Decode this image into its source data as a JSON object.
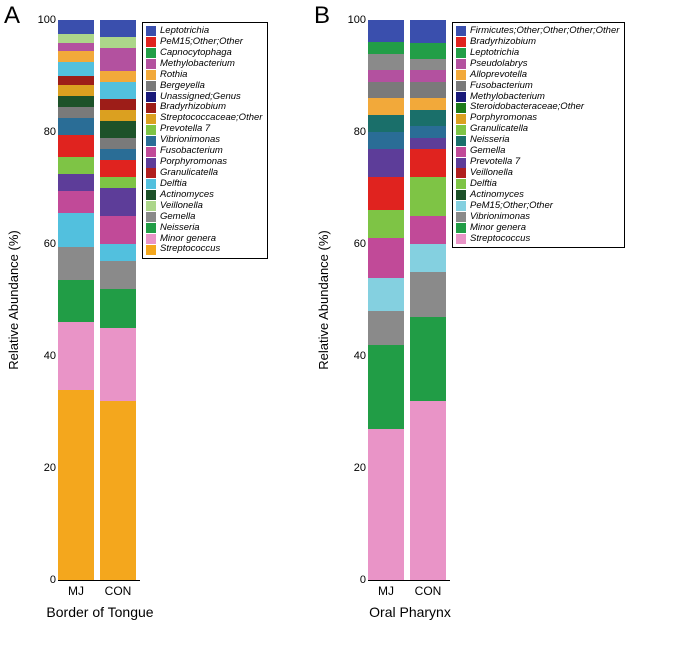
{
  "panelA": {
    "label": "A",
    "title": "Border of Tongue",
    "ylabel": "Relative Abundance (%)",
    "ylim": [
      0,
      100
    ],
    "ytick_step": 20,
    "categories": [
      "MJ",
      "CON"
    ],
    "axis_line_width": 82,
    "legend": [
      {
        "label": "Leptotrichia",
        "color": "#3a4fad"
      },
      {
        "label": "PeM15;Other;Other",
        "color": "#e0231f"
      },
      {
        "label": "Capnocytophaga",
        "color": "#229e47"
      },
      {
        "label": "Methylobacterium",
        "color": "#b3519f"
      },
      {
        "label": "Rothia",
        "color": "#f2a93a"
      },
      {
        "label": "Bergeyella",
        "color": "#7a7a7a"
      },
      {
        "label": "Unassigned;Genus",
        "color": "#1a1a7a"
      },
      {
        "label": "Bradyrhizobium",
        "color": "#9d1d18"
      },
      {
        "label": "Streptococcaceae;Other",
        "color": "#dba020"
      },
      {
        "label": "Prevotella 7",
        "color": "#7ec445"
      },
      {
        "label": "Vibrionimonas",
        "color": "#2a6d96"
      },
      {
        "label": "Fusobacterium",
        "color": "#c14a98"
      },
      {
        "label": "Porphyromonas",
        "color": "#5d3d99"
      },
      {
        "label": "Granulicatella",
        "color": "#b01f1e"
      },
      {
        "label": "Delftia",
        "color": "#52c0de"
      },
      {
        "label": "Actinomyces",
        "color": "#1d5229"
      },
      {
        "label": "Veillonella",
        "color": "#acd68a"
      },
      {
        "label": "Gemella",
        "color": "#8a8a8a"
      },
      {
        "label": "Neisseria",
        "color": "#219d46"
      },
      {
        "label": "Minor genera",
        "color": "#e994c7"
      },
      {
        "label": "Streptococcus",
        "color": "#f4a71d"
      }
    ],
    "bars": {
      "MJ": [
        {
          "color": "#f4a71d",
          "value": 34
        },
        {
          "color": "#e994c7",
          "value": 12
        },
        {
          "color": "#219d46",
          "value": 7.5
        },
        {
          "color": "#8a8a8a",
          "value": 6
        },
        {
          "color": "#52c0de",
          "value": 6
        },
        {
          "color": "#c14a98",
          "value": 4
        },
        {
          "color": "#5d3d99",
          "value": 3
        },
        {
          "color": "#7ec445",
          "value": 3
        },
        {
          "color": "#e0231f",
          "value": 4
        },
        {
          "color": "#2a6d96",
          "value": 3
        },
        {
          "color": "#7a7a7a",
          "value": 2
        },
        {
          "color": "#1d5229",
          "value": 2
        },
        {
          "color": "#dba020",
          "value": 2
        },
        {
          "color": "#9d1d18",
          "value": 1.5
        },
        {
          "color": "#52c0de",
          "value": 2.5
        },
        {
          "color": "#f2a93a",
          "value": 2
        },
        {
          "color": "#b3519f",
          "value": 1.5
        },
        {
          "color": "#acd68a",
          "value": 1.5
        },
        {
          "color": "#3a4fad",
          "value": 2.5
        }
      ],
      "CON": [
        {
          "color": "#f4a71d",
          "value": 32
        },
        {
          "color": "#e994c7",
          "value": 13
        },
        {
          "color": "#219d46",
          "value": 7
        },
        {
          "color": "#8a8a8a",
          "value": 5
        },
        {
          "color": "#52c0de",
          "value": 3
        },
        {
          "color": "#c14a98",
          "value": 5
        },
        {
          "color": "#5d3d99",
          "value": 5
        },
        {
          "color": "#7ec445",
          "value": 2
        },
        {
          "color": "#e0231f",
          "value": 3
        },
        {
          "color": "#2a6d96",
          "value": 2
        },
        {
          "color": "#7a7a7a",
          "value": 2
        },
        {
          "color": "#1d5229",
          "value": 3
        },
        {
          "color": "#dba020",
          "value": 2
        },
        {
          "color": "#9d1d18",
          "value": 2
        },
        {
          "color": "#52c0de",
          "value": 3
        },
        {
          "color": "#f2a93a",
          "value": 2
        },
        {
          "color": "#b3519f",
          "value": 4
        },
        {
          "color": "#acd68a",
          "value": 2
        },
        {
          "color": "#3a4fad",
          "value": 3
        }
      ]
    }
  },
  "panelB": {
    "label": "B",
    "title": "Oral Pharynx",
    "ylabel": "Relative Abundance (%)",
    "ylim": [
      0,
      100
    ],
    "ytick_step": 20,
    "categories": [
      "MJ",
      "CON"
    ],
    "axis_line_width": 82,
    "legend": [
      {
        "label": "Firmicutes;Other;Other;Other;Other",
        "color": "#3a4fad"
      },
      {
        "label": "Bradyrhizobium",
        "color": "#e0231f"
      },
      {
        "label": "Leptotrichia",
        "color": "#229e47"
      },
      {
        "label": "Pseudolabrys",
        "color": "#b3519f"
      },
      {
        "label": "Alloprevotella",
        "color": "#f2a93a"
      },
      {
        "label": "Fusobacterium",
        "color": "#7a7a7a"
      },
      {
        "label": "Methylobacterium",
        "color": "#1a1a7a"
      },
      {
        "label": "Steroidobacteraceae;Other",
        "color": "#1d7a1a"
      },
      {
        "label": "Porphyromonas",
        "color": "#dba020"
      },
      {
        "label": "Granulicatella",
        "color": "#7ec445"
      },
      {
        "label": "Neisseria",
        "color": "#1a6f6a"
      },
      {
        "label": "Gemella",
        "color": "#c14a98"
      },
      {
        "label": "Prevotella 7",
        "color": "#5d3d99"
      },
      {
        "label": "Veillonella",
        "color": "#b01f1e"
      },
      {
        "label": "Delftia",
        "color": "#7ec445"
      },
      {
        "label": "Actinomyces",
        "color": "#1d5229"
      },
      {
        "label": "PeM15;Other;Other",
        "color": "#84d0e0"
      },
      {
        "label": "Vibrionimonas",
        "color": "#8a8a8a"
      },
      {
        "label": "Minor genera",
        "color": "#219d46"
      },
      {
        "label": "Streptococcus",
        "color": "#e994c7"
      }
    ],
    "bars": {
      "MJ": [
        {
          "color": "#e994c7",
          "value": 27
        },
        {
          "color": "#219d46",
          "value": 15
        },
        {
          "color": "#8a8a8a",
          "value": 6
        },
        {
          "color": "#84d0e0",
          "value": 6
        },
        {
          "color": "#c14a98",
          "value": 7
        },
        {
          "color": "#7ec445",
          "value": 5
        },
        {
          "color": "#e0231f",
          "value": 6
        },
        {
          "color": "#5d3d99",
          "value": 5
        },
        {
          "color": "#2a6d96",
          "value": 3
        },
        {
          "color": "#1a6f6a",
          "value": 3
        },
        {
          "color": "#f2a93a",
          "value": 3
        },
        {
          "color": "#7a7a7a",
          "value": 3
        },
        {
          "color": "#b3519f",
          "value": 2
        },
        {
          "color": "#8a8a8a",
          "value": 3
        },
        {
          "color": "#229e47",
          "value": 2
        },
        {
          "color": "#3a4fad",
          "value": 4
        }
      ],
      "CON": [
        {
          "color": "#e994c7",
          "value": 32
        },
        {
          "color": "#219d46",
          "value": 15
        },
        {
          "color": "#8a8a8a",
          "value": 8
        },
        {
          "color": "#84d0e0",
          "value": 5
        },
        {
          "color": "#c14a98",
          "value": 5
        },
        {
          "color": "#7ec445",
          "value": 7
        },
        {
          "color": "#e0231f",
          "value": 5
        },
        {
          "color": "#5d3d99",
          "value": 2
        },
        {
          "color": "#2a6d96",
          "value": 2
        },
        {
          "color": "#1a6f6a",
          "value": 3
        },
        {
          "color": "#f2a93a",
          "value": 2
        },
        {
          "color": "#7a7a7a",
          "value": 3
        },
        {
          "color": "#b3519f",
          "value": 2
        },
        {
          "color": "#8a8a8a",
          "value": 2
        },
        {
          "color": "#229e47",
          "value": 3
        },
        {
          "color": "#3a4fad",
          "value": 4
        }
      ]
    }
  }
}
